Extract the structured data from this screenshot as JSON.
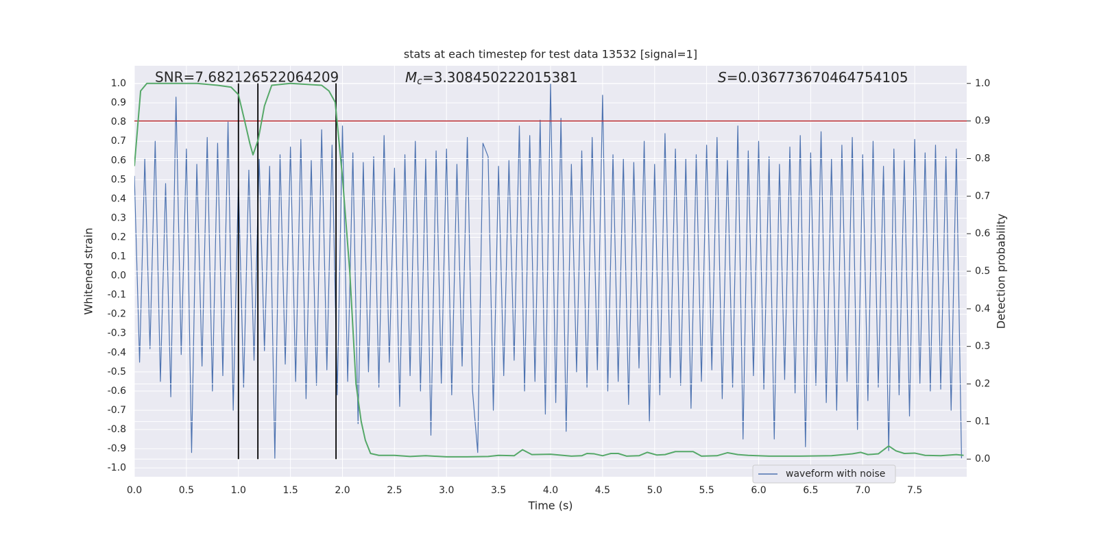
{
  "chart_data": {
    "type": "line",
    "title": "stats at each timestep for test data 13532 [signal=1]",
    "xlabel": "Time (s)",
    "ylabel": "Whitened strain",
    "y2label": "Detection probability",
    "annotations": [
      {
        "text": "SNR=7.682126522064209"
      },
      {
        "symbol": "M",
        "subscript": "c",
        "text": "=3.308450222015381"
      },
      {
        "symbol": "S",
        "text": "=0.036773670464754105"
      }
    ],
    "xlim": [
      0,
      8.0
    ],
    "ylim": [
      -1.046,
      1.093
    ],
    "y2lim": [
      -0.047,
      1.047
    ],
    "xticks": [
      {
        "value": 0,
        "label": "0.0"
      },
      0.5,
      {
        "value": 1,
        "label": "1.0"
      },
      1.5,
      {
        "value": 2,
        "label": "2.0"
      },
      2.5,
      {
        "value": 3,
        "label": "3.0"
      },
      3.5,
      {
        "value": 4,
        "label": "4.0"
      },
      4.5,
      {
        "value": 5,
        "label": "5.0"
      },
      5.5,
      {
        "value": 6,
        "label": "6.0"
      },
      6.5,
      {
        "value": 7,
        "label": "7.0"
      },
      7.5
    ],
    "yticks": [
      {
        "value": -1,
        "label": "-1.0"
      },
      -0.9,
      -0.8,
      -0.7,
      -0.6,
      -0.5,
      -0.4,
      -0.3,
      -0.2,
      -0.1,
      {
        "value": 0,
        "label": "0.0"
      },
      0.1,
      0.2,
      0.3,
      0.4,
      0.5,
      0.6,
      0.7,
      0.8,
      0.9,
      {
        "value": 1,
        "label": "1.0"
      }
    ],
    "y2ticks": [
      {
        "value": 0,
        "label": "0.0"
      },
      0.1,
      0.2,
      0.3,
      0.4,
      0.5,
      0.6,
      0.7,
      0.8,
      0.9,
      {
        "value": 1,
        "label": "1.0"
      }
    ],
    "grid": true,
    "legend": "lower right",
    "series": [
      {
        "name": "waveform with noise",
        "color": "#4c72b0",
        "x": [
          0,
          0.05,
          0.1,
          0.15,
          0.2,
          0.25,
          0.3,
          0.35,
          0.4,
          0.45,
          0.5,
          0.55,
          0.6,
          0.65,
          0.7,
          0.75,
          0.8,
          0.85,
          0.9,
          0.95,
          1,
          1.05,
          1.1,
          1.15,
          1.2,
          1.25,
          1.3,
          1.35,
          1.4,
          1.45,
          1.5,
          1.55,
          1.6,
          1.65,
          1.7,
          1.75,
          1.8,
          1.85,
          1.9,
          1.95,
          2,
          2.05,
          2.1,
          2.15,
          2.2,
          2.25,
          2.3,
          2.35,
          2.4,
          2.45,
          2.5,
          2.55,
          2.6,
          2.65,
          2.7,
          2.75,
          2.8,
          2.85,
          2.9,
          2.95,
          3,
          3.05,
          3.1,
          3.15,
          3.2,
          3.25,
          3.3,
          3.35,
          3.4,
          3.45,
          3.5,
          3.55,
          3.6,
          3.65,
          3.7,
          3.75,
          3.8,
          3.85,
          3.9,
          3.95,
          4,
          4.05,
          4.1,
          4.15,
          4.2,
          4.25,
          4.3,
          4.35,
          4.4,
          4.45,
          4.5,
          4.55,
          4.6,
          4.65,
          4.7,
          4.75,
          4.8,
          4.85,
          4.9,
          4.95,
          5,
          5.05,
          5.1,
          5.15,
          5.2,
          5.25,
          5.3,
          5.35,
          5.4,
          5.45,
          5.5,
          5.55,
          5.6,
          5.65,
          5.7,
          5.75,
          5.8,
          5.85,
          5.9,
          5.95,
          6,
          6.05,
          6.1,
          6.15,
          6.2,
          6.25,
          6.3,
          6.35,
          6.4,
          6.45,
          6.5,
          6.55,
          6.6,
          6.65,
          6.7,
          6.75,
          6.8,
          6.85,
          6.9,
          6.95,
          7,
          7.05,
          7.1,
          7.15,
          7.2,
          7.25,
          7.3,
          7.35,
          7.4,
          7.45,
          7.5,
          7.55,
          7.6,
          7.65,
          7.7,
          7.75,
          7.8,
          7.85,
          7.9,
          7.95
        ],
        "values": [
          0.52,
          -0.45,
          0.61,
          -0.38,
          0.7,
          -0.55,
          0.48,
          -0.63,
          0.93,
          -0.41,
          0.66,
          -0.92,
          0.58,
          -0.47,
          0.72,
          -0.6,
          0.69,
          -0.52,
          0.8,
          -0.7,
          0.49,
          -0.58,
          0.55,
          -0.44,
          0.61,
          -0.39,
          0.57,
          -0.95,
          0.63,
          -0.46,
          0.67,
          -0.55,
          0.71,
          -0.64,
          0.6,
          -0.57,
          0.76,
          -0.49,
          0.68,
          -0.62,
          0.78,
          -0.55,
          0.64,
          -0.77,
          0.59,
          -0.5,
          0.62,
          -0.58,
          0.73,
          -0.45,
          0.56,
          -0.68,
          0.63,
          -0.52,
          0.7,
          -0.6,
          0.61,
          -0.83,
          0.65,
          -0.56,
          0.66,
          -0.62,
          0.58,
          -0.47,
          0.72,
          -0.6,
          -0.92,
          0.69,
          0.62,
          -0.7,
          0.57,
          -0.52,
          0.6,
          -0.44,
          0.78,
          -0.6,
          0.73,
          -0.55,
          0.81,
          -0.72,
          1.0,
          -0.66,
          0.82,
          -0.81,
          0.58,
          -0.5,
          0.65,
          -0.58,
          0.72,
          -0.49,
          0.94,
          -0.6,
          0.63,
          -0.55,
          0.61,
          -0.67,
          0.59,
          -0.48,
          0.7,
          -0.76,
          0.58,
          -0.62,
          0.74,
          -0.53,
          0.66,
          -0.57,
          0.61,
          -0.69,
          0.63,
          -0.55,
          0.68,
          -0.49,
          0.72,
          -0.64,
          0.6,
          -0.58,
          0.78,
          -0.85,
          0.65,
          -0.52,
          0.7,
          -0.59,
          0.62,
          -0.85,
          0.58,
          -0.54,
          0.67,
          -0.61,
          0.73,
          -0.89,
          0.64,
          -0.57,
          0.75,
          -0.66,
          0.61,
          -0.7,
          0.68,
          -0.55,
          0.72,
          -0.8,
          0.63,
          -0.65,
          0.7,
          -0.58,
          0.57,
          -0.91,
          0.66,
          -0.62,
          0.6,
          -0.73,
          0.71,
          -0.56,
          0.64,
          -0.6,
          0.68,
          -0.59,
          0.62,
          -0.7,
          0.66,
          -0.95
        ]
      },
      {
        "color": "#55a868",
        "axis": "y2",
        "x": [
          0,
          0.03,
          0.06,
          0.12,
          0.3,
          0.6,
          0.8,
          0.93,
          1,
          1.06,
          1.11,
          1.14,
          1.19,
          1.25,
          1.32,
          1.5,
          1.8,
          1.87,
          1.93,
          2,
          2.07,
          2.13,
          2.18,
          2.22,
          2.27,
          2.35,
          2.5,
          2.65,
          2.8,
          3,
          3.2,
          3.4,
          3.5,
          3.65,
          3.73,
          3.82,
          4,
          4.2,
          4.3,
          4.35,
          4.42,
          4.5,
          4.58,
          4.65,
          4.73,
          4.85,
          4.93,
          5.02,
          5.1,
          5.2,
          5.3,
          5.37,
          5.45,
          5.6,
          5.7,
          5.8,
          5.9,
          6.1,
          6.4,
          6.7,
          6.9,
          6.98,
          7.05,
          7.15,
          7.25,
          7.32,
          7.4,
          7.5,
          7.6,
          7.75,
          7.9,
          7.97
        ],
        "values": [
          0.78,
          0.88,
          0.98,
          1.0,
          1.0,
          1.0,
          0.995,
          0.99,
          0.97,
          0.9,
          0.84,
          0.81,
          0.85,
          0.94,
          0.995,
          1.0,
          0.995,
          0.98,
          0.95,
          0.75,
          0.5,
          0.2,
          0.1,
          0.05,
          0.015,
          0.01,
          0.01,
          0.007,
          0.009,
          0.006,
          0.006,
          0.007,
          0.01,
          0.009,
          0.025,
          0.012,
          0.013,
          0.008,
          0.009,
          0.015,
          0.014,
          0.009,
          0.015,
          0.015,
          0.008,
          0.009,
          0.018,
          0.011,
          0.012,
          0.02,
          0.02,
          0.02,
          0.008,
          0.009,
          0.017,
          0.012,
          0.01,
          0.008,
          0.008,
          0.009,
          0.014,
          0.018,
          0.012,
          0.014,
          0.035,
          0.022,
          0.015,
          0.016,
          0.01,
          0.009,
          0.012,
          0.01
        ]
      }
    ],
    "hlines": [
      {
        "y": 0.9,
        "axis": "y2",
        "color": "#b8282e"
      }
    ],
    "vlines": {
      "x": [
        1.0,
        1.187,
        1.938
      ],
      "ymin": 0,
      "ymax": 1,
      "axis": "y2",
      "color": "#000000"
    }
  }
}
